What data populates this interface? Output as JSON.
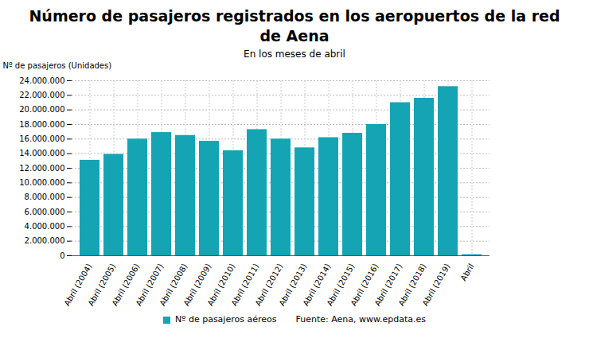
{
  "chart_data": {
    "type": "bar",
    "title": "Número de pasajeros registrados en los aeropuertos de la red de Aena",
    "subtitle": "En los meses de abril",
    "y_label": "Nº de pasajeros (Unidades)",
    "categories": [
      "Abril (2004)",
      "Abril (2005)",
      "Abril (2006)",
      "Abril (2007)",
      "Abril (2008)",
      "Abril (2009)",
      "Abril (2010)",
      "Abril (2011)",
      "Abril (2012)",
      "Abril (2013)",
      "Abril (2014)",
      "Abril (2015)",
      "Abril (2016)",
      "Abril (2017)",
      "Abril (2018)",
      "Abril (2019)",
      "Abril"
    ],
    "series": [
      {
        "name": "Nº de pasajeros aéreos",
        "color": "#14a4b4",
        "values": [
          13100000,
          13900000,
          16000000,
          16900000,
          16500000,
          15700000,
          14400000,
          17300000,
          16000000,
          14800000,
          16200000,
          16800000,
          18000000,
          21000000,
          21600000,
          23200000,
          150000
        ]
      }
    ],
    "source": "Fuente: Aena, www.epdata.es",
    "ylim": [
      0,
      24000000
    ],
    "yticks": [
      {
        "value": 0,
        "label": "0"
      },
      {
        "value": 2000000,
        "label": "2.000.000"
      },
      {
        "value": 4000000,
        "label": "4.000.000"
      },
      {
        "value": 6000000,
        "label": "6.000.000"
      },
      {
        "value": 8000000,
        "label": "8.000.000"
      },
      {
        "value": 10000000,
        "label": "10.000.000"
      },
      {
        "value": 12000000,
        "label": "12.000.000"
      },
      {
        "value": 14000000,
        "label": "14.000.000"
      },
      {
        "value": 16000000,
        "label": "16.000.000"
      },
      {
        "value": 18000000,
        "label": "18.000.000"
      },
      {
        "value": 20000000,
        "label": "20.000.000"
      },
      {
        "value": 22000000,
        "label": "22.000.000"
      },
      {
        "value": 24000000,
        "label": "24.000.000"
      }
    ],
    "grid": true,
    "legend": "bottom"
  }
}
